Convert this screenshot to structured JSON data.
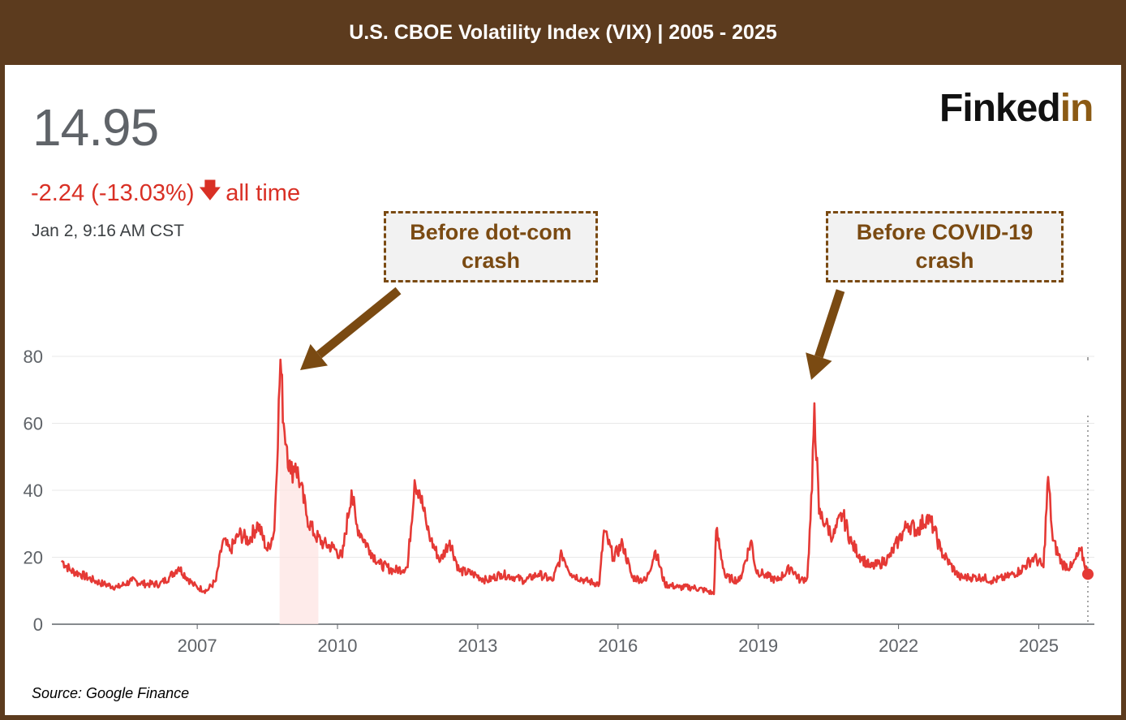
{
  "title": "U.S. CBOE Volatility Index (VIX) | 2005 - 2025",
  "quote": {
    "price": "14.95",
    "change": "-2.24 (-13.03%)",
    "change_arrow": "down-arrow-icon",
    "range": "all time",
    "timestamp": "Jan 2, 9:16 AM CST"
  },
  "logo": {
    "main": "Finked",
    "accent": "in"
  },
  "source": "Source: Google Finance",
  "annotations": [
    {
      "text": "Before dot-com crash",
      "points_to_year": 2008.85
    },
    {
      "text": "Before COVID-19 crash",
      "points_to_year": 2020.2
    }
  ],
  "colors": {
    "frame": "#5c3b1e",
    "line": "#e53935",
    "negative": "#d93025",
    "callout": "#7a4a12",
    "logo_accent": "#8b5a14"
  },
  "chart_data": {
    "type": "area",
    "title": "U.S. CBOE Volatility Index (VIX) | 2005 - 2025",
    "xlabel": "",
    "ylabel": "",
    "ylim": [
      0,
      80
    ],
    "xlim": [
      2004.1,
      2026.05
    ],
    "yticks": [
      0,
      20,
      40,
      60,
      80
    ],
    "xticks": [
      2007,
      2010,
      2013,
      2016,
      2019,
      2022,
      2025
    ],
    "grid": true,
    "series": [
      {
        "x": [
          2004.1,
          2004.3,
          2004.5,
          2004.8,
          2005.0,
          2005.3,
          2005.6,
          2005.9,
          2006.2,
          2006.4,
          2006.6,
          2006.9,
          2007.0,
          2007.2,
          2007.4,
          2007.55,
          2007.7,
          2007.9,
          2008.1,
          2008.3,
          2008.5,
          2008.65,
          2008.78,
          2008.85,
          2008.92,
          2009.0,
          2009.1,
          2009.2,
          2009.35,
          2009.5,
          2009.7,
          2009.9,
          2010.1,
          2010.3,
          2010.4,
          2010.5,
          2010.7,
          2010.9,
          2011.2,
          2011.5,
          2011.65,
          2011.75,
          2011.9,
          2012.0,
          2012.2,
          2012.4,
          2012.6,
          2012.9,
          2013.2,
          2013.5,
          2013.8,
          2014.0,
          2014.3,
          2014.6,
          2014.8,
          2015.0,
          2015.3,
          2015.6,
          2015.7,
          2015.9,
          2016.1,
          2016.3,
          2016.6,
          2016.8,
          2017.0,
          2017.3,
          2017.6,
          2017.9,
          2018.05,
          2018.1,
          2018.3,
          2018.6,
          2018.85,
          2018.95,
          2019.1,
          2019.4,
          2019.7,
          2019.9,
          2020.05,
          2020.15,
          2020.2,
          2020.3,
          2020.45,
          2020.6,
          2020.8,
          2021.0,
          2021.2,
          2021.4,
          2021.6,
          2021.8,
          2022.0,
          2022.2,
          2022.4,
          2022.6,
          2022.75,
          2022.9,
          2023.1,
          2023.3,
          2023.5,
          2023.8,
          2024.0,
          2024.3,
          2024.6,
          2024.9,
          2025.1,
          2025.2,
          2025.3,
          2025.5,
          2025.7,
          2025.9,
          2026.05
        ],
        "values": [
          19,
          16,
          15,
          13,
          12,
          11,
          13,
          12,
          12,
          14,
          17,
          12,
          11,
          10,
          13,
          25,
          22,
          27,
          25,
          30,
          22,
          28,
          79,
          60,
          53,
          45,
          48,
          42,
          32,
          27,
          24,
          23,
          20,
          40,
          30,
          27,
          22,
          18,
          16,
          17,
          43,
          40,
          30,
          25,
          19,
          25,
          16,
          15,
          13,
          15,
          14,
          13,
          15,
          13,
          21,
          15,
          13,
          12,
          28,
          20,
          24,
          14,
          13,
          22,
          12,
          11,
          11,
          10,
          9,
          28,
          14,
          13,
          25,
          16,
          15,
          13,
          17,
          13,
          14,
          40,
          66,
          33,
          30,
          26,
          33,
          24,
          20,
          17,
          18,
          20,
          25,
          30,
          28,
          32,
          29,
          22,
          18,
          14,
          14,
          14,
          13,
          14,
          16,
          20,
          17,
          44,
          25,
          18,
          17,
          22,
          14.95
        ]
      }
    ],
    "last_value": 14.95
  }
}
